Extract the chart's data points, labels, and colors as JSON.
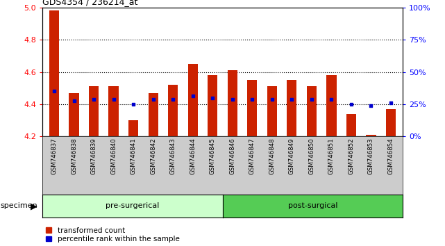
{
  "title": "GDS4354 / 236214_at",
  "samples": [
    "GSM746837",
    "GSM746838",
    "GSM746839",
    "GSM746840",
    "GSM746841",
    "GSM746842",
    "GSM746843",
    "GSM746844",
    "GSM746845",
    "GSM746846",
    "GSM746847",
    "GSM746848",
    "GSM746849",
    "GSM746850",
    "GSM746851",
    "GSM746852",
    "GSM746853",
    "GSM746854"
  ],
  "bar_values": [
    4.98,
    4.47,
    4.51,
    4.51,
    4.3,
    4.47,
    4.52,
    4.65,
    4.58,
    4.61,
    4.55,
    4.51,
    4.55,
    4.51,
    4.58,
    4.34,
    4.21,
    4.37
  ],
  "blue_dot_values": [
    4.48,
    4.42,
    4.43,
    4.43,
    4.4,
    4.43,
    4.43,
    4.45,
    4.44,
    4.43,
    4.43,
    4.43,
    4.43,
    4.43,
    4.43,
    4.4,
    4.39,
    4.41
  ],
  "pre_surgical_count": 9,
  "post_surgical_count": 9,
  "ylim_left": [
    4.2,
    5.0
  ],
  "ylim_right": [
    0,
    100
  ],
  "yticks_left": [
    4.2,
    4.4,
    4.6,
    4.8,
    5.0
  ],
  "yticks_right": [
    0,
    25,
    50,
    75,
    100
  ],
  "bar_color": "#cc2200",
  "dot_color": "#0000cc",
  "pre_color": "#ccffcc",
  "post_color": "#55cc55",
  "tick_bg_color": "#cccccc",
  "bg_color": "#ffffff",
  "bar_base": 4.2,
  "bar_width": 0.5,
  "pre_label": "pre-surgerical",
  "post_label": "post-surgical",
  "legend_labels": [
    "transformed count",
    "percentile rank within the sample"
  ]
}
